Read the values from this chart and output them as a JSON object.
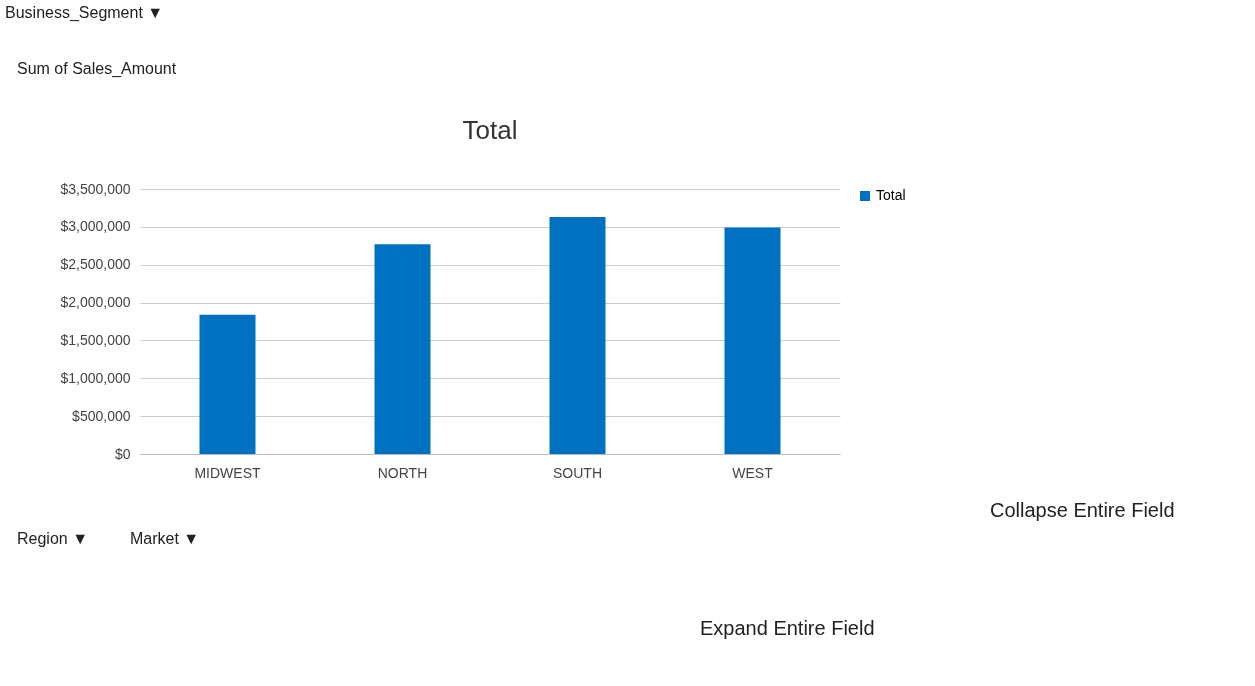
{
  "chart_data": {
    "type": "bar",
    "title": "Total",
    "categories": [
      "MIDWEST",
      "NORTH",
      "SOUTH",
      "WEST"
    ],
    "series": [
      {
        "name": "Total",
        "color": "#0070c0",
        "values": [
          1840000,
          2770000,
          3130000,
          2990000
        ]
      }
    ],
    "ylim": [
      0,
      3500000
    ],
    "yticks": [
      {
        "value": 0,
        "label": "$0"
      },
      {
        "value": 500000,
        "label": "$500,000"
      },
      {
        "value": 1000000,
        "label": "$1,000,000"
      },
      {
        "value": 1500000,
        "label": "$1,500,000"
      },
      {
        "value": 2000000,
        "label": "$2,000,000"
      },
      {
        "value": 2500000,
        "label": "$2,500,000"
      },
      {
        "value": 3000000,
        "label": "$3,000,000"
      },
      {
        "value": 3500000,
        "label": "$3,500,000"
      }
    ],
    "grid": "y",
    "legend": "right",
    "annotations": [
      "Business_Segment ▼",
      "Sum of Sales_Amount",
      "Region ▼",
      "Market ▼",
      "Collapse Entire Field",
      "Expand Entire Field"
    ]
  }
}
